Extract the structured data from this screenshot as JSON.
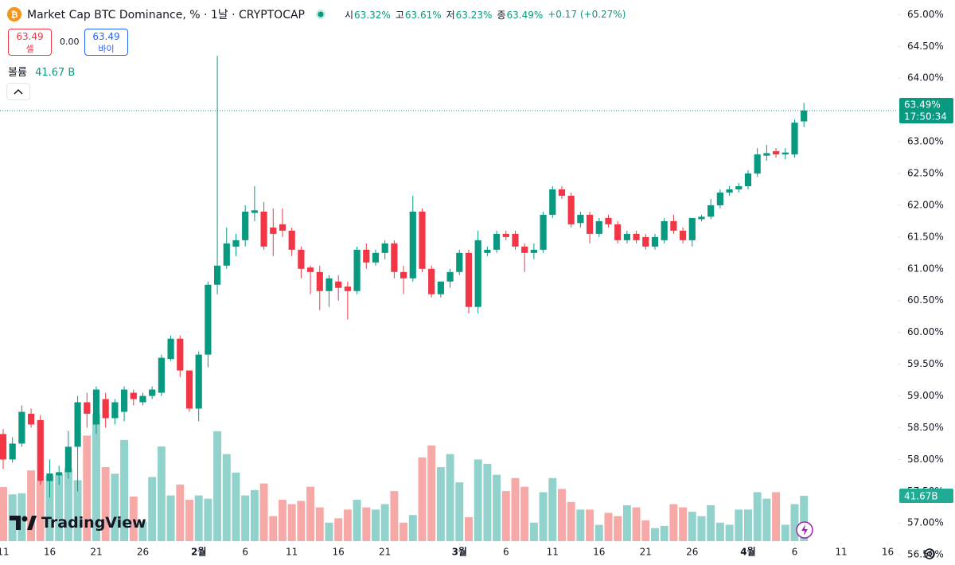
{
  "header": {
    "title": "Market Cap BTC Dominance, % · 1날 · CRYPTOCAP",
    "ohlc": [
      {
        "label": "시",
        "value": "63.32%"
      },
      {
        "label": "고",
        "value": "63.61%"
      },
      {
        "label": "저",
        "value": "63.23%"
      },
      {
        "label": "종",
        "value": "63.49%"
      }
    ],
    "change": "+0.17 (+0.27%)",
    "sell": {
      "price": "63.49",
      "label": "셀"
    },
    "spread": "0.00",
    "buy": {
      "price": "63.49",
      "label": "바이"
    },
    "volume": {
      "label": "볼륨",
      "value": "41.67 B"
    },
    "brand": "TradingView"
  },
  "chart_data": {
    "type": "candlestick",
    "open": [
      58.4,
      58.0,
      58.25,
      58.72,
      58.62,
      57.66,
      57.75,
      57.8,
      58.2,
      58.9,
      58.55,
      58.95,
      58.65,
      58.75,
      59.05,
      58.9,
      59.0,
      59.05,
      59.58,
      59.9,
      59.4,
      58.8,
      59.65,
      60.75,
      61.05,
      61.35,
      61.45,
      61.88,
      61.9,
      61.65,
      61.7,
      61.6,
      61.3,
      61.02,
      60.95,
      60.65,
      60.8,
      60.72,
      60.65,
      61.3,
      61.1,
      61.25,
      61.4,
      60.95,
      60.85,
      61.9,
      61.0,
      60.6,
      60.8,
      60.95,
      61.25,
      60.4,
      61.25,
      61.3,
      61.55,
      61.55,
      61.35,
      61.25,
      61.3,
      61.85,
      62.25,
      62.15,
      61.72,
      61.85,
      61.55,
      61.8,
      61.7,
      61.45,
      61.55,
      61.5,
      61.35,
      61.45,
      61.75,
      61.6,
      61.45,
      61.78,
      61.82,
      62.0,
      62.2,
      62.25,
      62.3,
      62.5,
      62.78,
      62.85,
      62.8,
      62.8,
      63.32
    ],
    "high": [
      58.48,
      58.35,
      58.85,
      58.8,
      58.7,
      58.0,
      57.9,
      58.45,
      59.0,
      59.05,
      59.15,
      59.05,
      58.95,
      59.15,
      59.1,
      59.05,
      59.15,
      59.65,
      59.95,
      59.95,
      59.4,
      59.7,
      60.8,
      64.35,
      61.65,
      61.55,
      62.0,
      62.3,
      62.05,
      61.95,
      61.95,
      61.65,
      61.35,
      61.05,
      61.05,
      60.9,
      60.9,
      60.8,
      61.35,
      61.4,
      61.3,
      61.45,
      61.45,
      61.05,
      62.15,
      61.95,
      61.05,
      60.8,
      61.0,
      61.3,
      61.3,
      61.6,
      61.35,
      61.6,
      61.6,
      61.6,
      61.4,
      61.4,
      61.9,
      62.3,
      62.3,
      62.2,
      61.9,
      61.9,
      61.8,
      61.85,
      61.75,
      61.6,
      61.6,
      61.55,
      61.55,
      61.8,
      61.85,
      61.65,
      61.8,
      61.85,
      62.1,
      62.25,
      62.3,
      62.35,
      62.55,
      62.9,
      62.95,
      62.9,
      62.9,
      63.35,
      63.61
    ],
    "low": [
      57.85,
      57.95,
      58.2,
      58.5,
      57.6,
      57.4,
      57.6,
      57.7,
      57.5,
      58.5,
      58.4,
      58.5,
      58.55,
      58.6,
      58.85,
      58.85,
      58.95,
      59.0,
      59.55,
      59.3,
      58.75,
      58.6,
      59.45,
      60.6,
      61.0,
      61.2,
      61.35,
      61.75,
      61.3,
      61.2,
      61.5,
      61.2,
      60.85,
      60.6,
      60.35,
      60.4,
      60.5,
      60.2,
      60.6,
      61.0,
      61.05,
      61.15,
      60.85,
      60.6,
      60.8,
      60.95,
      60.55,
      60.55,
      60.7,
      60.9,
      60.3,
      60.3,
      61.2,
      61.25,
      61.45,
      61.3,
      60.95,
      61.15,
      61.25,
      61.8,
      62.1,
      61.65,
      61.65,
      61.4,
      61.5,
      61.65,
      61.4,
      61.4,
      61.4,
      61.3,
      61.3,
      61.4,
      61.55,
      61.4,
      61.35,
      61.75,
      61.78,
      61.95,
      62.15,
      62.2,
      62.25,
      62.45,
      62.7,
      62.75,
      62.72,
      62.75,
      63.23
    ],
    "close": [
      58.0,
      58.25,
      58.75,
      58.55,
      57.66,
      57.78,
      57.8,
      58.2,
      58.9,
      58.72,
      59.1,
      58.65,
      58.9,
      59.1,
      58.95,
      59.0,
      59.1,
      59.6,
      59.9,
      59.4,
      58.8,
      59.65,
      60.75,
      61.05,
      61.4,
      61.45,
      61.9,
      61.92,
      61.35,
      61.55,
      61.6,
      61.3,
      61.0,
      60.95,
      60.65,
      60.85,
      60.7,
      60.65,
      61.3,
      61.1,
      61.25,
      61.4,
      60.95,
      60.85,
      61.9,
      61.0,
      60.6,
      60.8,
      60.95,
      61.25,
      60.4,
      61.45,
      61.3,
      61.55,
      61.5,
      61.35,
      61.25,
      61.3,
      61.85,
      62.25,
      62.15,
      61.7,
      61.85,
      61.55,
      61.75,
      61.7,
      61.45,
      61.55,
      61.45,
      61.35,
      61.5,
      61.75,
      61.6,
      61.45,
      61.8,
      61.82,
      62.0,
      62.2,
      62.25,
      62.3,
      62.5,
      62.8,
      62.82,
      62.8,
      62.83,
      63.3,
      63.49
    ],
    "volume": [
      49.7,
      43,
      44,
      65,
      55,
      60,
      61,
      67,
      56,
      97,
      117,
      68,
      62,
      93,
      41,
      18,
      59,
      87,
      42,
      52,
      38,
      42,
      39,
      101,
      80,
      63,
      42,
      47,
      53,
      23,
      38,
      34,
      37,
      50,
      31,
      17,
      21,
      29,
      38,
      31,
      29,
      34,
      46,
      17,
      24,
      77,
      88,
      68,
      80,
      54,
      22,
      75,
      71,
      61,
      46,
      58,
      50,
      17,
      45,
      58,
      48,
      36,
      29,
      29,
      15,
      26,
      23,
      33,
      31,
      19,
      12,
      14,
      34,
      31,
      27,
      23,
      33,
      17,
      15,
      29,
      29,
      45,
      39,
      45,
      15,
      34,
      41.67
    ],
    "volume_ylim": [
      0,
      218
    ],
    "volume_label": "41.67B",
    "last_price_label": "63.49%",
    "countdown": "17:50:34",
    "up_color": "#089981",
    "down_color": "#f23645",
    "volume_up_color": "#92d2cc",
    "volume_down_color": "#f7a9a7",
    "ylim": [
      56.69,
      65.23
    ],
    "yticks": [
      {
        "value": 65.0,
        "label": "65.00%"
      },
      {
        "value": 64.5,
        "label": "64.50%"
      },
      {
        "value": 64.0,
        "label": "64.00%"
      },
      {
        "value": 63.5,
        "label": "63.50%"
      },
      {
        "value": 63.0,
        "label": "63.00%"
      },
      {
        "value": 62.5,
        "label": "62.50%"
      },
      {
        "value": 62.0,
        "label": "62.00%"
      },
      {
        "value": 61.5,
        "label": "61.50%"
      },
      {
        "value": 61.0,
        "label": "61.00%"
      },
      {
        "value": 60.5,
        "label": "60.50%"
      },
      {
        "value": 60.0,
        "label": "60.00%"
      },
      {
        "value": 59.5,
        "label": "59.50%"
      },
      {
        "value": 59.0,
        "label": "59.00%"
      },
      {
        "value": 58.5,
        "label": "58.50%"
      },
      {
        "value": 58.0,
        "label": "58.00%"
      },
      {
        "value": 57.5,
        "label": "57.50%"
      },
      {
        "value": 57.0,
        "label": "57.00%"
      },
      {
        "value": 56.5,
        "label": "56.50%"
      }
    ],
    "xlim": [
      -0.34,
      96.07
    ],
    "xticks": [
      {
        "value": 0,
        "label": "11"
      },
      {
        "value": 5,
        "label": "16"
      },
      {
        "value": 10,
        "label": "21"
      },
      {
        "value": 15,
        "label": "26"
      },
      {
        "value": 21,
        "label": "2월"
      },
      {
        "value": 26,
        "label": "6"
      },
      {
        "value": 31,
        "label": "11"
      },
      {
        "value": 36,
        "label": "16"
      },
      {
        "value": 41,
        "label": "21"
      },
      {
        "value": 49,
        "label": "3월"
      },
      {
        "value": 54,
        "label": "6"
      },
      {
        "value": 59,
        "label": "11"
      },
      {
        "value": 64,
        "label": "16"
      },
      {
        "value": 69,
        "label": "21"
      },
      {
        "value": 74,
        "label": "26"
      },
      {
        "value": 80,
        "label": "4월"
      },
      {
        "value": 85,
        "label": "6"
      },
      {
        "value": 90,
        "label": "11"
      },
      {
        "value": 95,
        "label": "16"
      }
    ]
  }
}
